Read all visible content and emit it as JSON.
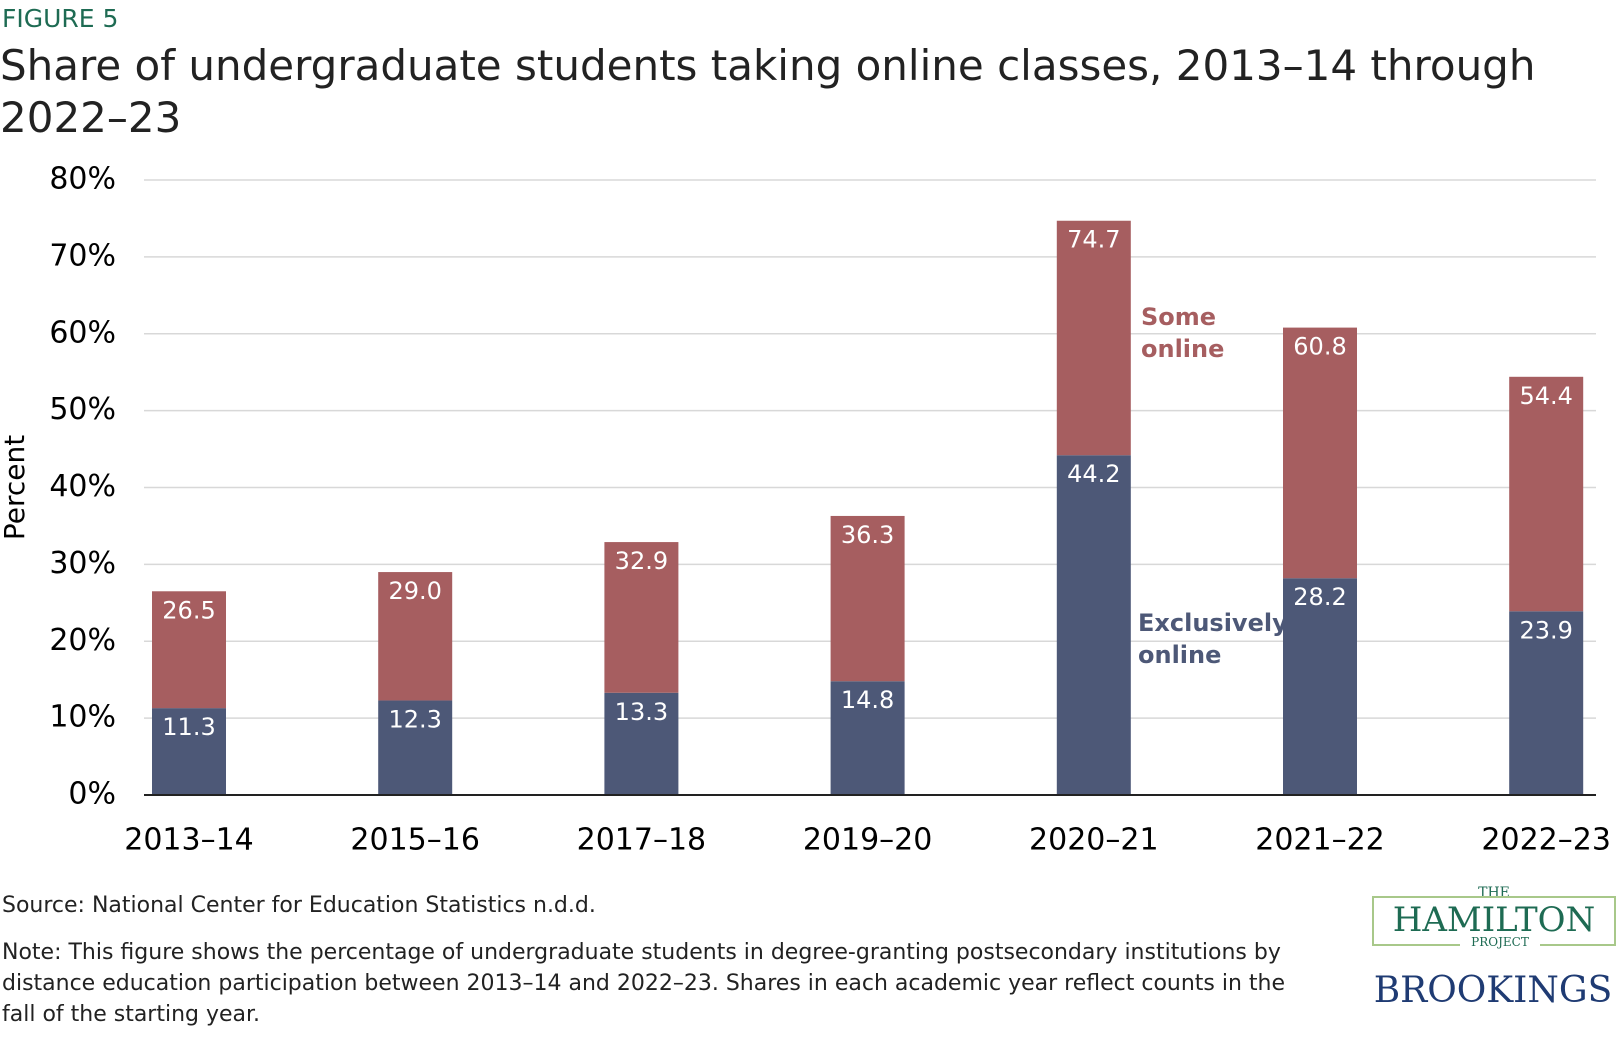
{
  "figure_label": "FIGURE 5",
  "chart_data": {
    "type": "stacked_bar",
    "title": "Share of undergraduate students taking online classes, 2013–14 through 2022–23",
    "y_label": "Percent",
    "categories": [
      "2013–14",
      "2015–16",
      "2017–18",
      "2019–20",
      "2020–21",
      "2021–22",
      "2022–23"
    ],
    "series": [
      {
        "name": "Exclusively online",
        "color": "#4d5877",
        "values": [
          11.3,
          12.3,
          13.3,
          14.8,
          44.2,
          28.2,
          23.9
        ]
      },
      {
        "name": "Some online",
        "color": "#a65e60",
        "values": [
          15.2,
          16.7,
          19.6,
          21.5,
          30.5,
          32.6,
          30.5
        ]
      }
    ],
    "totals": [
      26.5,
      29,
      32.9,
      36.3,
      74.7,
      60.8,
      54.4
    ],
    "total_labels": [
      "26.5",
      "29.0",
      "32.9",
      "36.3",
      "74.7",
      "60.8",
      "54.4"
    ],
    "ylim": [
      0,
      80
    ],
    "yticks": [
      {
        "value": 0,
        "label": "0%"
      },
      {
        "value": 10,
        "label": "10%"
      },
      {
        "value": 20,
        "label": "20%"
      },
      {
        "value": 30,
        "label": "30%"
      },
      {
        "value": 40,
        "label": "40%"
      },
      {
        "value": 50,
        "label": "50%"
      },
      {
        "value": 60,
        "label": "60%"
      },
      {
        "value": 70,
        "label": "70%"
      },
      {
        "value": 80,
        "label": "80%"
      }
    ],
    "grid": true
  },
  "source": "Source: National Center for Education Statistics n.d.d.",
  "note": "Note: This figure shows the percentage of undergraduate students in degree-granting postsecondary institutions by distance education participation between 2013–14 and 2022–23. Shares in each academic year reflect counts in the fall of the starting year.",
  "logo": {
    "the": "THE",
    "hamilton": "HAMILTON",
    "project": "PROJECT",
    "brookings": "BROOKINGS"
  }
}
